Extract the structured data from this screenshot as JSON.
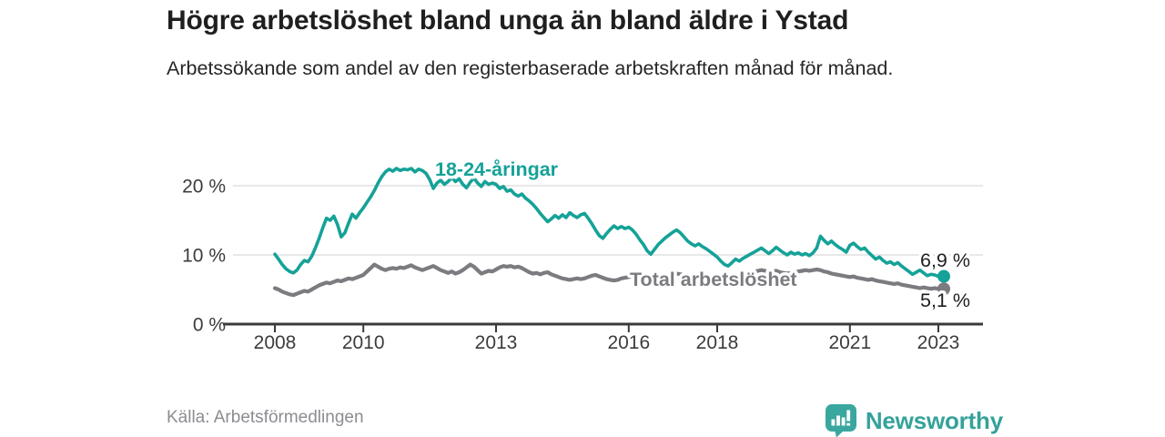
{
  "header": {
    "title": "Högre arbetslöshet bland unga än bland äldre i Ystad",
    "subtitle": "Arbetssökande som andel av den registerbaserade arbetskraften månad för månad."
  },
  "colors": {
    "young_series": "#15a298",
    "total_series": "#7b7b80",
    "gridline": "#dbdbdb",
    "axis": "#3a3a3a",
    "tick_label": "#3c3c3c",
    "value_label": "#1f1f1f",
    "source_text": "#8c8c92",
    "logo_teal": "#3aa79f",
    "background": "#ffffff"
  },
  "chart_data": {
    "type": "line",
    "title": "Högre arbetslöshet bland unga än bland äldre i Ystad",
    "subtitle": "Arbetssökande som andel av den registerbaserade arbetskraften månad för månad.",
    "unit": "%",
    "grid": "horizontal-only",
    "legend_position": "inline-labels",
    "xlim": [
      2006.8,
      2024.0
    ],
    "ylim": [
      0,
      24
    ],
    "x_start": 2008.0,
    "x_step_years": 0.08333333,
    "x_ticks": [
      2008,
      2010,
      2013,
      2016,
      2018,
      2021,
      2023
    ],
    "x_tick_labels": [
      "2008",
      "2010",
      "2013",
      "2016",
      "2018",
      "2021",
      "2023"
    ],
    "y_ticks": [
      0,
      10,
      20
    ],
    "y_tick_labels": [
      "0 %",
      "10 %",
      "20 %"
    ],
    "series": [
      {
        "name": "18-24-åringar",
        "color": "#15a298",
        "end_label": "6,9 %",
        "end_value": 6.9,
        "values": [
          10.1,
          9.4,
          8.6,
          8.0,
          7.6,
          7.4,
          7.8,
          8.6,
          9.2,
          9.0,
          9.8,
          11.0,
          12.4,
          13.9,
          15.3,
          15.0,
          15.6,
          14.4,
          12.6,
          13.2,
          14.6,
          15.9,
          15.3,
          16.1,
          16.8,
          17.6,
          18.4,
          19.3,
          20.4,
          21.3,
          22.0,
          22.4,
          22.1,
          22.5,
          22.2,
          22.4,
          22.3,
          22.5,
          22.0,
          22.4,
          22.2,
          21.8,
          20.9,
          19.6,
          20.4,
          20.8,
          20.2,
          20.6,
          21.2,
          20.6,
          21.0,
          20.2,
          19.7,
          20.5,
          21.1,
          20.4,
          19.9,
          20.6,
          20.2,
          20.4,
          20.2,
          19.6,
          19.9,
          19.2,
          19.4,
          18.8,
          18.5,
          18.8,
          18.2,
          17.8,
          17.3,
          16.7,
          16.0,
          15.4,
          14.8,
          15.2,
          15.7,
          15.3,
          15.8,
          15.4,
          16.1,
          15.7,
          15.4,
          15.8,
          16.0,
          15.3,
          14.5,
          13.6,
          12.8,
          12.4,
          13.1,
          13.7,
          14.2,
          13.8,
          14.1,
          13.8,
          14.0,
          13.6,
          13.0,
          12.2,
          11.5,
          10.6,
          10.1,
          10.8,
          11.5,
          12.0,
          12.5,
          12.9,
          13.3,
          13.6,
          13.2,
          12.6,
          12.0,
          11.6,
          11.3,
          11.6,
          11.2,
          10.9,
          10.5,
          10.1,
          9.7,
          9.1,
          8.6,
          8.4,
          8.9,
          9.4,
          9.1,
          9.5,
          9.8,
          10.1,
          10.4,
          10.7,
          11.0,
          10.6,
          10.2,
          10.6,
          11.1,
          10.7,
          10.3,
          10.0,
          10.4,
          10.1,
          10.3,
          10.0,
          10.2,
          9.9,
          10.3,
          11.0,
          12.7,
          12.1,
          11.6,
          12.0,
          11.5,
          11.1,
          10.8,
          10.4,
          11.4,
          11.7,
          11.2,
          10.8,
          11.0,
          10.4,
          9.9,
          9.4,
          9.7,
          9.2,
          8.8,
          9.0,
          8.6,
          8.9,
          8.4,
          8.0,
          7.6,
          7.2,
          7.5,
          7.8,
          7.4,
          7.0,
          7.2,
          7.1,
          6.9
        ]
      },
      {
        "name": "Total arbetslöshet",
        "color": "#7b7b80",
        "end_label": "5,1 %",
        "end_value": 5.1,
        "values": [
          5.2,
          5.0,
          4.7,
          4.5,
          4.3,
          4.2,
          4.4,
          4.6,
          4.8,
          4.7,
          5.0,
          5.3,
          5.6,
          5.8,
          6.0,
          5.9,
          6.1,
          6.3,
          6.2,
          6.4,
          6.6,
          6.5,
          6.7,
          6.9,
          7.1,
          7.6,
          8.1,
          8.6,
          8.3,
          8.0,
          7.8,
          8.0,
          8.1,
          8.0,
          8.2,
          8.1,
          8.3,
          8.5,
          8.2,
          8.0,
          7.8,
          8.0,
          8.2,
          8.4,
          8.1,
          7.8,
          7.6,
          7.4,
          7.6,
          7.3,
          7.5,
          7.8,
          8.2,
          8.6,
          8.3,
          7.8,
          7.3,
          7.5,
          7.7,
          7.6,
          7.9,
          8.2,
          8.4,
          8.3,
          8.4,
          8.2,
          8.3,
          8.1,
          7.8,
          7.5,
          7.3,
          7.4,
          7.2,
          7.4,
          7.5,
          7.2,
          7.0,
          6.8,
          6.6,
          6.5,
          6.4,
          6.5,
          6.6,
          6.5,
          6.6,
          6.8,
          7.0,
          7.1,
          6.9,
          6.7,
          6.5,
          6.4,
          6.3,
          6.4,
          6.6,
          6.7,
          6.8,
          6.9,
          7.0,
          6.9,
          6.8,
          6.7,
          6.8,
          6.9,
          7.0,
          6.9,
          7.0,
          7.1,
          7.2,
          7.3,
          7.2,
          7.1,
          7.0,
          6.9,
          7.0,
          7.1,
          7.0,
          6.9,
          6.8,
          6.9,
          6.8,
          6.7,
          6.6,
          6.7,
          6.8,
          6.9,
          7.0,
          7.1,
          7.2,
          7.3,
          7.5,
          7.7,
          7.8,
          7.7,
          7.5,
          7.6,
          7.7,
          7.5,
          7.4,
          7.3,
          7.4,
          7.5,
          7.6,
          7.7,
          7.8,
          7.7,
          7.8,
          7.9,
          7.8,
          7.6,
          7.5,
          7.3,
          7.2,
          7.1,
          7.0,
          6.9,
          6.8,
          6.9,
          6.7,
          6.6,
          6.5,
          6.4,
          6.5,
          6.3,
          6.2,
          6.1,
          6.0,
          5.9,
          5.8,
          5.9,
          5.7,
          5.6,
          5.5,
          5.4,
          5.3,
          5.2,
          5.3,
          5.2,
          5.1,
          5.2,
          5.1
        ]
      }
    ]
  },
  "footer": {
    "source": "Källa: Arbetsförmedlingen",
    "logo_text": "Newsworthy"
  }
}
